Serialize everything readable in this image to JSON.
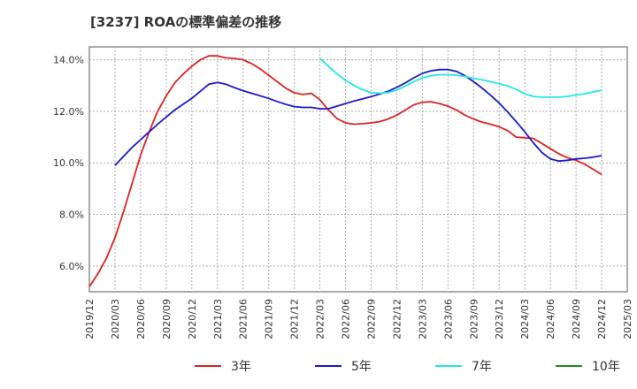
{
  "chart_data": {
    "type": "line",
    "title": "[3237]  ROAの標準偏差の推移",
    "xlabel": "",
    "ylabel": "",
    "ylim": [
      5.0,
      14.5
    ],
    "yticks": [
      6.0,
      8.0,
      10.0,
      12.0,
      14.0
    ],
    "ytick_labels": [
      "6.0%",
      "8.0%",
      "10.0%",
      "12.0%",
      "14.0%"
    ],
    "xlim": [
      "2019-12",
      "2025-03"
    ],
    "xtick_labels": [
      "2019/12",
      "2020/03",
      "2020/06",
      "2020/09",
      "2020/12",
      "2021/03",
      "2021/06",
      "2021/09",
      "2021/12",
      "2022/03",
      "2022/06",
      "2022/09",
      "2022/12",
      "2023/03",
      "2023/06",
      "2023/09",
      "2023/12",
      "2024/03",
      "2024/06",
      "2024/09",
      "2024/12",
      "2025/03"
    ],
    "grid": true,
    "legend_position": "bottom",
    "series": [
      {
        "name": "3年",
        "color": "#dd2222",
        "points": [
          [
            "2019-12",
            5.2
          ],
          [
            "2020-01",
            5.7
          ],
          [
            "2020-02",
            6.3
          ],
          [
            "2020-03",
            7.1
          ],
          [
            "2020-04",
            8.1
          ],
          [
            "2020-05",
            9.2
          ],
          [
            "2020-06",
            10.3
          ],
          [
            "2020-07",
            11.2
          ],
          [
            "2020-08",
            12.0
          ],
          [
            "2020-09",
            12.6
          ],
          [
            "2020-10",
            13.1
          ],
          [
            "2020-11",
            13.45
          ],
          [
            "2020-12",
            13.75
          ],
          [
            "2021-01",
            14.0
          ],
          [
            "2021-02",
            14.15
          ],
          [
            "2021-03",
            14.15
          ],
          [
            "2021-04",
            14.07
          ],
          [
            "2021-05",
            14.05
          ],
          [
            "2021-06",
            14.0
          ],
          [
            "2021-07",
            13.85
          ],
          [
            "2021-08",
            13.65
          ],
          [
            "2021-09",
            13.4
          ],
          [
            "2021-10",
            13.15
          ],
          [
            "2021-11",
            12.9
          ],
          [
            "2021-12",
            12.72
          ],
          [
            "2022-01",
            12.65
          ],
          [
            "2022-02",
            12.7
          ],
          [
            "2022-03",
            12.45
          ],
          [
            "2022-04",
            12.05
          ],
          [
            "2022-05",
            11.72
          ],
          [
            "2022-06",
            11.55
          ],
          [
            "2022-07",
            11.5
          ],
          [
            "2022-08",
            11.52
          ],
          [
            "2022-09",
            11.55
          ],
          [
            "2022-10",
            11.6
          ],
          [
            "2022-11",
            11.7
          ],
          [
            "2022-12",
            11.85
          ],
          [
            "2023-01",
            12.05
          ],
          [
            "2023-02",
            12.25
          ],
          [
            "2023-03",
            12.35
          ],
          [
            "2023-04",
            12.37
          ],
          [
            "2023-05",
            12.3
          ],
          [
            "2023-06",
            12.2
          ],
          [
            "2023-07",
            12.05
          ],
          [
            "2023-08",
            11.85
          ],
          [
            "2023-09",
            11.7
          ],
          [
            "2023-10",
            11.58
          ],
          [
            "2023-11",
            11.5
          ],
          [
            "2023-12",
            11.4
          ],
          [
            "2024-01",
            11.25
          ],
          [
            "2024-02",
            11.0
          ],
          [
            "2024-03",
            10.97
          ],
          [
            "2024-04",
            10.95
          ],
          [
            "2024-05",
            10.75
          ],
          [
            "2024-06",
            10.55
          ],
          [
            "2024-07",
            10.35
          ],
          [
            "2024-08",
            10.2
          ],
          [
            "2024-09",
            10.1
          ],
          [
            "2024-10",
            9.95
          ],
          [
            "2024-11",
            9.75
          ],
          [
            "2024-12",
            9.55
          ]
        ]
      },
      {
        "name": "5年",
        "color": "#1a1acc",
        "points": [
          [
            "2020-03",
            9.9
          ],
          [
            "2020-04",
            10.25
          ],
          [
            "2020-05",
            10.6
          ],
          [
            "2020-06",
            10.9
          ],
          [
            "2020-07",
            11.2
          ],
          [
            "2020-08",
            11.5
          ],
          [
            "2020-09",
            11.78
          ],
          [
            "2020-10",
            12.05
          ],
          [
            "2020-11",
            12.28
          ],
          [
            "2020-12",
            12.5
          ],
          [
            "2021-01",
            12.78
          ],
          [
            "2021-02",
            13.05
          ],
          [
            "2021-03",
            13.12
          ],
          [
            "2021-04",
            13.05
          ],
          [
            "2021-05",
            12.92
          ],
          [
            "2021-06",
            12.8
          ],
          [
            "2021-07",
            12.7
          ],
          [
            "2021-08",
            12.6
          ],
          [
            "2021-09",
            12.5
          ],
          [
            "2021-10",
            12.38
          ],
          [
            "2021-11",
            12.27
          ],
          [
            "2021-12",
            12.18
          ],
          [
            "2022-01",
            12.15
          ],
          [
            "2022-02",
            12.15
          ],
          [
            "2022-03",
            12.1
          ],
          [
            "2022-04",
            12.1
          ],
          [
            "2022-05",
            12.2
          ],
          [
            "2022-06",
            12.3
          ],
          [
            "2022-07",
            12.4
          ],
          [
            "2022-08",
            12.48
          ],
          [
            "2022-09",
            12.57
          ],
          [
            "2022-10",
            12.67
          ],
          [
            "2022-11",
            12.78
          ],
          [
            "2022-12",
            12.93
          ],
          [
            "2023-01",
            13.1
          ],
          [
            "2023-02",
            13.3
          ],
          [
            "2023-03",
            13.47
          ],
          [
            "2023-04",
            13.57
          ],
          [
            "2023-05",
            13.62
          ],
          [
            "2023-06",
            13.62
          ],
          [
            "2023-07",
            13.55
          ],
          [
            "2023-08",
            13.38
          ],
          [
            "2023-09",
            13.15
          ],
          [
            "2023-10",
            12.9
          ],
          [
            "2023-11",
            12.62
          ],
          [
            "2023-12",
            12.32
          ],
          [
            "2024-01",
            11.97
          ],
          [
            "2024-02",
            11.6
          ],
          [
            "2024-03",
            11.2
          ],
          [
            "2024-04",
            10.78
          ],
          [
            "2024-05",
            10.4
          ],
          [
            "2024-06",
            10.15
          ],
          [
            "2024-07",
            10.07
          ],
          [
            "2024-08",
            10.1
          ],
          [
            "2024-09",
            10.15
          ],
          [
            "2024-10",
            10.18
          ],
          [
            "2024-11",
            10.22
          ],
          [
            "2024-12",
            10.28
          ]
        ]
      },
      {
        "name": "7年",
        "color": "#22e6e6",
        "points": [
          [
            "2022-03",
            14.05
          ],
          [
            "2022-04",
            13.75
          ],
          [
            "2022-05",
            13.45
          ],
          [
            "2022-06",
            13.2
          ],
          [
            "2022-07",
            13.0
          ],
          [
            "2022-08",
            12.83
          ],
          [
            "2022-09",
            12.73
          ],
          [
            "2022-10",
            12.7
          ],
          [
            "2022-11",
            12.73
          ],
          [
            "2022-12",
            12.82
          ],
          [
            "2023-01",
            12.98
          ],
          [
            "2023-02",
            13.15
          ],
          [
            "2023-03",
            13.3
          ],
          [
            "2023-04",
            13.38
          ],
          [
            "2023-05",
            13.42
          ],
          [
            "2023-06",
            13.42
          ],
          [
            "2023-07",
            13.4
          ],
          [
            "2023-08",
            13.35
          ],
          [
            "2023-09",
            13.28
          ],
          [
            "2023-10",
            13.22
          ],
          [
            "2023-11",
            13.15
          ],
          [
            "2023-12",
            13.07
          ],
          [
            "2024-01",
            12.98
          ],
          [
            "2024-02",
            12.85
          ],
          [
            "2024-03",
            12.68
          ],
          [
            "2024-04",
            12.58
          ],
          [
            "2024-05",
            12.55
          ],
          [
            "2024-06",
            12.55
          ],
          [
            "2024-07",
            12.55
          ],
          [
            "2024-08",
            12.58
          ],
          [
            "2024-09",
            12.63
          ],
          [
            "2024-10",
            12.68
          ],
          [
            "2024-11",
            12.75
          ],
          [
            "2024-12",
            12.82
          ]
        ]
      },
      {
        "name": "10年",
        "color": "#228b22",
        "points": []
      }
    ]
  }
}
